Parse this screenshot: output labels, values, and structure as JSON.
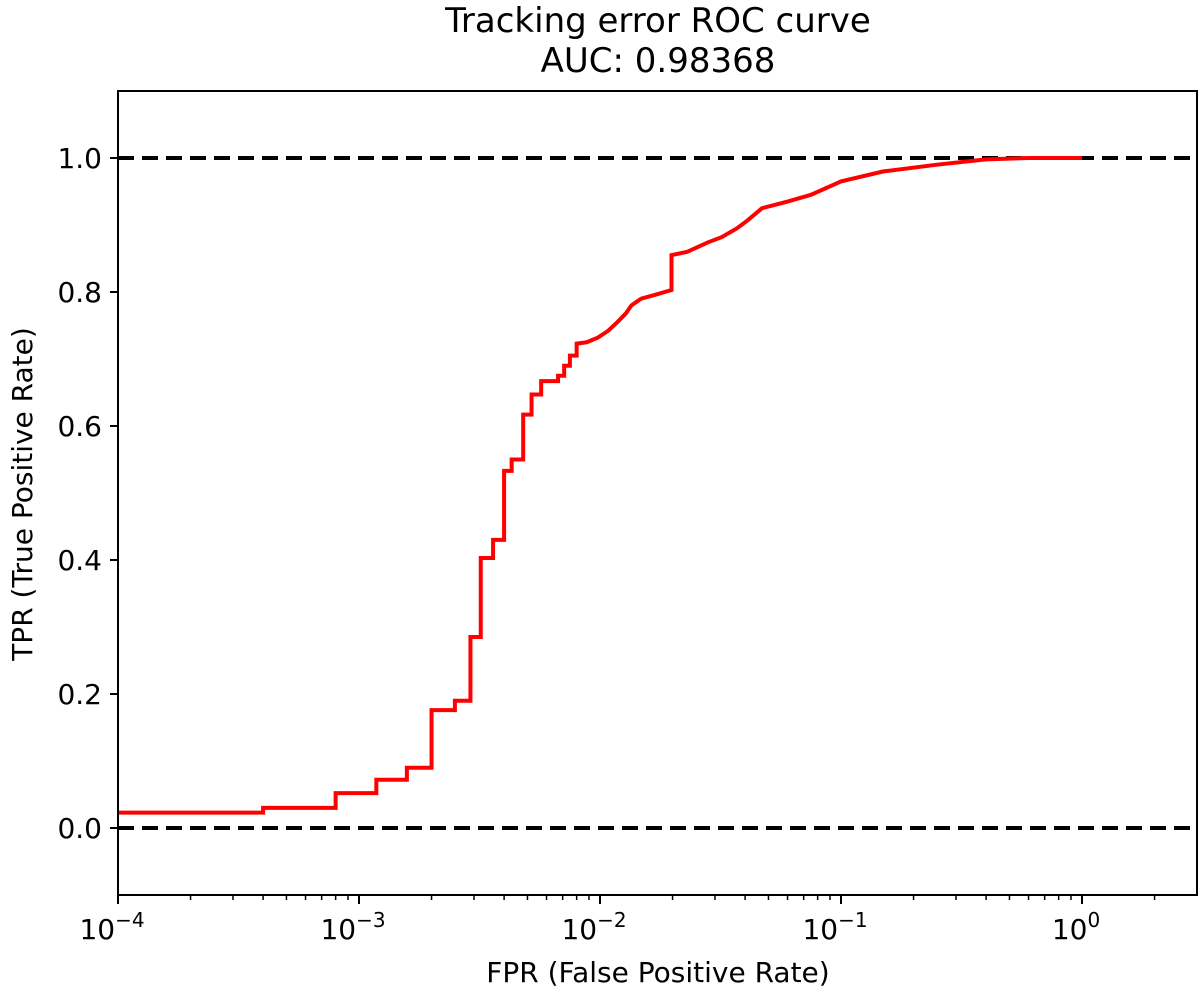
{
  "chart_data": {
    "type": "line",
    "title": "Tracking error ROC curve",
    "subtitle": "AUC: 0.98368",
    "xlabel": "FPR (False Positive Rate)",
    "ylabel": "TPR (True Positive Rate)",
    "x_scale": "log",
    "xlim": [
      0.0001,
      3.0
    ],
    "ylim": [
      -0.1,
      1.1
    ],
    "x_major_ticks": [
      {
        "value": 0.0001,
        "base": "10",
        "exp": "−4"
      },
      {
        "value": 0.001,
        "base": "10",
        "exp": "−3"
      },
      {
        "value": 0.01,
        "base": "10",
        "exp": "−2"
      },
      {
        "value": 0.1,
        "base": "10",
        "exp": "−1"
      },
      {
        "value": 1,
        "base": "10",
        "exp": "0"
      }
    ],
    "y_ticks": [
      {
        "value": 0.0,
        "label": "0.0"
      },
      {
        "value": 0.2,
        "label": "0.2"
      },
      {
        "value": 0.4,
        "label": "0.4"
      },
      {
        "value": 0.6,
        "label": "0.6"
      },
      {
        "value": 0.8,
        "label": "0.8"
      },
      {
        "value": 1.0,
        "label": "1.0"
      }
    ],
    "grid": false,
    "reference_lines": [
      {
        "y": 1.0,
        "style": "dashed",
        "color": "#000000"
      },
      {
        "y": 0.0,
        "style": "dashed",
        "color": "#000000"
      }
    ],
    "series": [
      {
        "color": "#ff0000",
        "style": "step",
        "points": [
          [
            0.0001,
            0.023
          ],
          [
            0.0004,
            0.023
          ],
          [
            0.0004,
            0.03
          ],
          [
            0.0008,
            0.03
          ],
          [
            0.0008,
            0.052
          ],
          [
            0.00118,
            0.052
          ],
          [
            0.00118,
            0.072
          ],
          [
            0.00158,
            0.072
          ],
          [
            0.00158,
            0.09
          ],
          [
            0.002,
            0.09
          ],
          [
            0.002,
            0.176
          ],
          [
            0.0025,
            0.176
          ],
          [
            0.0025,
            0.19
          ],
          [
            0.0029,
            0.19
          ],
          [
            0.0029,
            0.285
          ],
          [
            0.0032,
            0.285
          ],
          [
            0.0032,
            0.403
          ],
          [
            0.0036,
            0.403
          ],
          [
            0.0036,
            0.43
          ],
          [
            0.004,
            0.43
          ],
          [
            0.004,
            0.533
          ],
          [
            0.0043,
            0.533
          ],
          [
            0.0043,
            0.55
          ],
          [
            0.0048,
            0.55
          ],
          [
            0.0048,
            0.617
          ],
          [
            0.0052,
            0.617
          ],
          [
            0.0052,
            0.647
          ],
          [
            0.0057,
            0.647
          ],
          [
            0.0057,
            0.667
          ],
          [
            0.0067,
            0.667
          ],
          [
            0.0067,
            0.675
          ],
          [
            0.0071,
            0.675
          ],
          [
            0.0071,
            0.69
          ],
          [
            0.0075,
            0.69
          ],
          [
            0.0075,
            0.705
          ],
          [
            0.008,
            0.705
          ],
          [
            0.008,
            0.723
          ],
          [
            0.0088,
            0.725
          ],
          [
            0.0098,
            0.732
          ],
          [
            0.0108,
            0.742
          ],
          [
            0.0118,
            0.755
          ],
          [
            0.0128,
            0.768
          ],
          [
            0.0135,
            0.78
          ],
          [
            0.0148,
            0.79
          ],
          [
            0.017,
            0.796
          ],
          [
            0.0198,
            0.803
          ],
          [
            0.0198,
            0.855
          ],
          [
            0.023,
            0.86
          ],
          [
            0.028,
            0.874
          ],
          [
            0.032,
            0.882
          ],
          [
            0.037,
            0.895
          ],
          [
            0.041,
            0.907
          ],
          [
            0.047,
            0.925
          ],
          [
            0.06,
            0.935
          ],
          [
            0.075,
            0.945
          ],
          [
            0.1,
            0.965
          ],
          [
            0.15,
            0.98
          ],
          [
            0.25,
            0.99
          ],
          [
            0.4,
            0.998
          ],
          [
            0.6,
            1.0
          ],
          [
            1.0,
            1.0
          ]
        ]
      }
    ]
  }
}
